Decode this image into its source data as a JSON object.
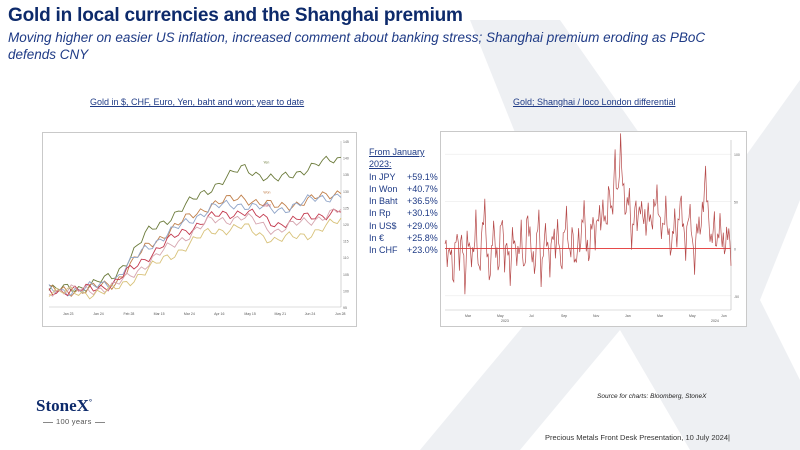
{
  "title": "Gold in local currencies and the Shanghai premium",
  "subtitle": "Moving higher on easier US inflation, increased comment about banking stress; Shanghai premium eroding as PBoC defends CNY",
  "left_chart_title": "Gold in $, CHF, Euro, Yen, baht and won; year to date",
  "right_chart_title": "Gold; Shanghai  / loco London  differential",
  "performance_panel": {
    "heading_1": "From January",
    "heading_2": "2023:",
    "rows": [
      {
        "label": "In JPY",
        "value": "+59.1%"
      },
      {
        "label": "In Won",
        "value": "+40.7%"
      },
      {
        "label": "In Baht",
        "value": "+36.5%"
      },
      {
        "label": "In Rp",
        "value": "+30.1%"
      },
      {
        "label": "In US$",
        "value": "+29.0%"
      },
      {
        "label": "In €",
        "value": "+25.8%"
      },
      {
        "label": "In CHF",
        "value": "+23.0%"
      }
    ]
  },
  "source": "Source for charts: Bloomberg, StoneX",
  "footer": "Precious Metals Front Desk Presentation, 10 July 2024|",
  "logo": {
    "name": "StoneX",
    "mark": "°",
    "years": "100 years"
  },
  "colors": {
    "brand_navy": "#0d2a6b",
    "accent_blue": "#1f3b86",
    "premium_line": "#b64a4a",
    "zero_line": "#e23030"
  },
  "chart_data": [
    {
      "type": "line",
      "title": "Gold in $, CHF, Euro, Yen, baht and won; year to date",
      "x": [
        "Jan 23",
        "Jan 24",
        "Feb 28",
        "Mar 15",
        "Mar 24",
        "Apr 16",
        "May 15",
        "May 21",
        "Jun 24",
        "Jun 28"
      ],
      "series": [
        {
          "name": "Yen",
          "color": "#6b7a3a",
          "values": [
            100,
            101,
            104,
            117,
            124,
            131,
            137,
            133,
            137,
            140
          ]
        },
        {
          "name": "Won",
          "color": "#c07f4a",
          "values": [
            100,
            100,
            102,
            113,
            120,
            126,
            128,
            125,
            127,
            130
          ]
        },
        {
          "name": "",
          "color": "#8fa4c8",
          "values": [
            100,
            100,
            103,
            113,
            119,
            125,
            126,
            124,
            127,
            129
          ]
        },
        {
          "name": "Baht",
          "color": "#c33a4e",
          "values": [
            100,
            100,
            102,
            110,
            117,
            122,
            124,
            120,
            122,
            124
          ]
        },
        {
          "name": "",
          "color": "#d6a6b0",
          "values": [
            100,
            100,
            101,
            108,
            115,
            121,
            122,
            118,
            121,
            124
          ]
        },
        {
          "name": "",
          "color": "#d8c27a",
          "values": [
            100,
            99,
            100,
            106,
            112,
            118,
            119,
            115,
            117,
            121
          ]
        }
      ],
      "ylim": [
        95,
        145
      ],
      "grid": false,
      "legend": "inline labels"
    },
    {
      "type": "line",
      "title": "Gold; Shanghai  / loco London  differential",
      "x_labels": [
        "Mar",
        "May",
        "Jul",
        "Sep",
        "Nov",
        "Jan",
        "Mar",
        "May",
        "Jun"
      ],
      "year_labels": [
        "2023",
        "2024"
      ],
      "y_ticks": [
        100,
        50,
        0,
        -50
      ],
      "zero_line": true,
      "series": [
        {
          "name": "",
          "color": "#b64a4a",
          "values": [
            5,
            -20,
            10,
            -35,
            15,
            -10,
            25,
            -50,
            20,
            0,
            -15,
            30,
            -25,
            10,
            40,
            -5,
            -30,
            20,
            5,
            -20,
            35,
            -10,
            15,
            -40,
            25,
            0,
            -15,
            20,
            -25,
            30,
            10,
            -5,
            -20,
            40,
            -30,
            15,
            5,
            -15,
            25,
            -10,
            30,
            -20,
            10,
            35,
            -5,
            15,
            -25,
            20,
            0,
            45,
            10,
            -10,
            30,
            15,
            40,
            20,
            50,
            25,
            60,
            30,
            105,
            40,
            110,
            70,
            30,
            60,
            10,
            45,
            20,
            55,
            35,
            15,
            50,
            25,
            40,
            60,
            30,
            10,
            45,
            20,
            -10,
            35,
            15,
            50,
            25,
            5,
            40,
            20,
            -15,
            30,
            10,
            45,
            85,
            25,
            5,
            40,
            -10,
            30,
            15,
            -5,
            20,
            0
          ]
        }
      ],
      "ylim": [
        -65,
        115
      ]
    }
  ]
}
